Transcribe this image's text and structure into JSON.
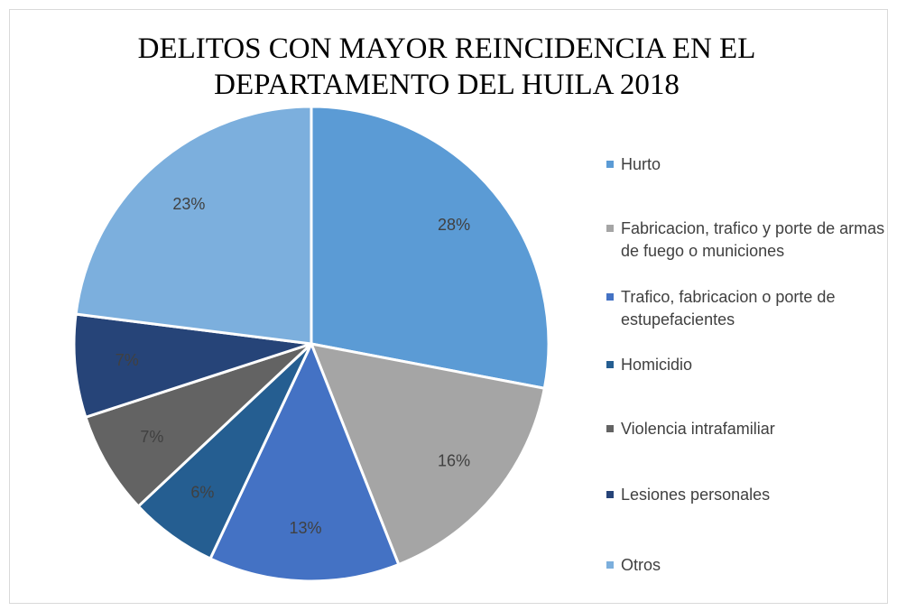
{
  "chart_data": {
    "type": "pie",
    "title": "DELITOS CON MAYOR REINCIDENCIA EN EL DEPARTAMENTO DEL HUILA 2018",
    "categories": [
      "Hurto",
      "Fabricacion, trafico y porte de armas de fuego o municiones",
      "Trafico, fabricacion o porte de estupefacientes",
      "Homicidio",
      "Violencia intrafamiliar",
      "Lesiones personales",
      "Otros"
    ],
    "values": [
      28,
      16,
      13,
      6,
      7,
      7,
      23
    ],
    "value_labels": [
      "28%",
      "16%",
      "13%",
      "6%",
      "7%",
      "7%",
      "23%"
    ],
    "colors": [
      "#5b9bd5",
      "#a5a5a5",
      "#4472c4",
      "#255e91",
      "#636363",
      "#264478",
      "#7cafdd"
    ],
    "legend": "right"
  }
}
